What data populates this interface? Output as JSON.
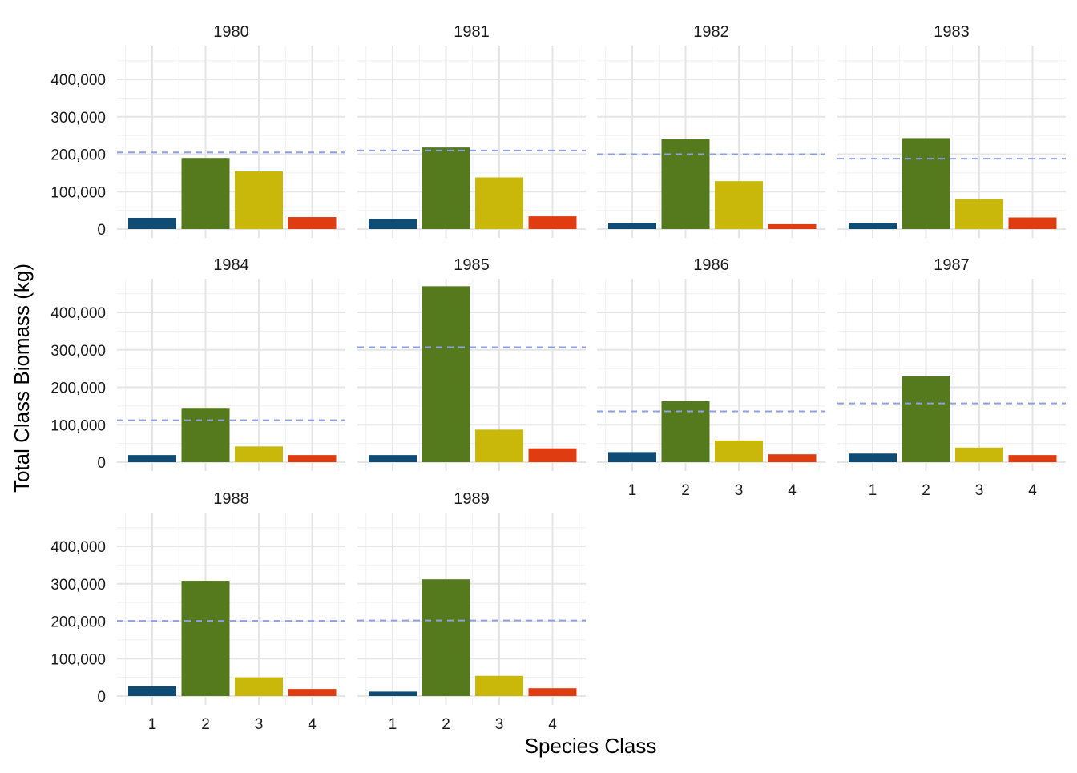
{
  "chart_data": {
    "type": "bar",
    "layout": "facet_wrap",
    "facet_columns": 4,
    "xlabel": "Species Class",
    "ylabel": "Total Class Biomass (kg)",
    "categories": [
      "1",
      "2",
      "3",
      "4"
    ],
    "ylim": [
      0,
      490000
    ],
    "y_ticks": [
      0,
      100000,
      200000,
      300000,
      400000
    ],
    "y_tick_labels": [
      "0",
      "100,000",
      "200,000",
      "300,000",
      "400,000"
    ],
    "category_colors": [
      "#0f4c75",
      "#557a1e",
      "#c9b80a",
      "#e03c12"
    ],
    "reference_line_color": "#8da0e6",
    "grid": true,
    "panels": [
      {
        "year": "1980",
        "values": [
          30000,
          190000,
          154000,
          32000
        ],
        "reference_value": 205000
      },
      {
        "year": "1981",
        "values": [
          27000,
          218000,
          138000,
          34000
        ],
        "reference_value": 210000
      },
      {
        "year": "1982",
        "values": [
          16000,
          240000,
          128000,
          13000
        ],
        "reference_value": 200000
      },
      {
        "year": "1983",
        "values": [
          16000,
          243000,
          80000,
          31000
        ],
        "reference_value": 188000
      },
      {
        "year": "1984",
        "values": [
          19000,
          145000,
          42000,
          19000
        ],
        "reference_value": 112000
      },
      {
        "year": "1985",
        "values": [
          19000,
          470000,
          87000,
          37000
        ],
        "reference_value": 307000
      },
      {
        "year": "1986",
        "values": [
          27000,
          163000,
          58000,
          21000
        ],
        "reference_value": 136000
      },
      {
        "year": "1987",
        "values": [
          23000,
          229000,
          39000,
          19000
        ],
        "reference_value": 157000
      },
      {
        "year": "1988",
        "values": [
          26000,
          308000,
          50000,
          19000
        ],
        "reference_value": 201000
      },
      {
        "year": "1989",
        "values": [
          12000,
          312000,
          54000,
          21000
        ],
        "reference_value": 202000
      }
    ]
  }
}
